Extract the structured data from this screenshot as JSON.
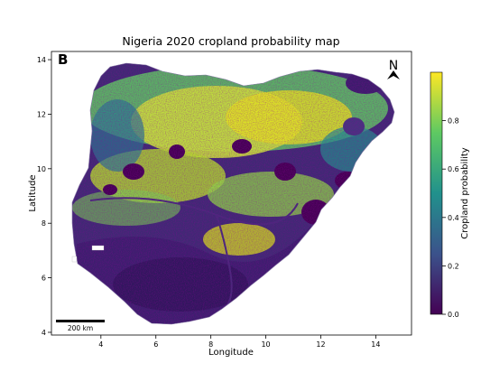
{
  "figure": {
    "title": "Nigeria 2020 cropland probability map",
    "panel_label": "B",
    "xlabel": "Longitude",
    "ylabel": "Latitude",
    "xticks": [
      "4",
      "6",
      "8",
      "10",
      "12",
      "14"
    ],
    "yticks": [
      "4",
      "6",
      "8",
      "10",
      "12",
      "14"
    ],
    "north_label": "N",
    "scale_bar_label": "200 km"
  },
  "colorbar": {
    "label": "Cropland probability",
    "ticks": [
      "0.0",
      "0.2",
      "0.4",
      "0.6",
      "0.8"
    ],
    "colors": [
      "#440154",
      "#3b528b",
      "#21918c",
      "#5ec962",
      "#fde725"
    ]
  },
  "map": {
    "xlim": [
      2.2,
      15.3
    ],
    "ylim": [
      3.9,
      14.3
    ]
  }
}
